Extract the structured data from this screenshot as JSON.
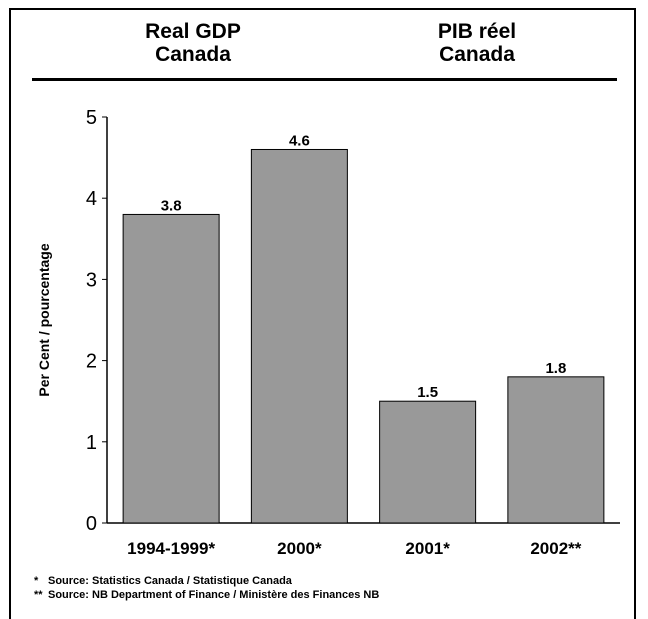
{
  "title_en": [
    "Real GDP",
    "Canada"
  ],
  "title_fr": [
    "PIB réel",
    "Canada"
  ],
  "chart_data": {
    "type": "bar",
    "categories": [
      "1994-1999*",
      "2000*",
      "2001*",
      "2002**"
    ],
    "values": [
      3.8,
      4.6,
      1.5,
      1.8
    ],
    "value_labels": [
      "3.8",
      "4.6",
      "1.5",
      "1.8"
    ],
    "ylabel": "Per Cent / pourcentage",
    "xlabel": "",
    "ylim": [
      0,
      5
    ],
    "yticks": [
      0,
      1,
      2,
      3,
      4,
      5
    ],
    "grid": false,
    "bar_color": "#999999"
  },
  "footnotes": [
    {
      "mark": "*",
      "text": "Source: Statistics Canada / Statistique Canada"
    },
    {
      "mark": "**",
      "text": "Source: NB Department of Finance / Ministère des Finances NB"
    }
  ]
}
